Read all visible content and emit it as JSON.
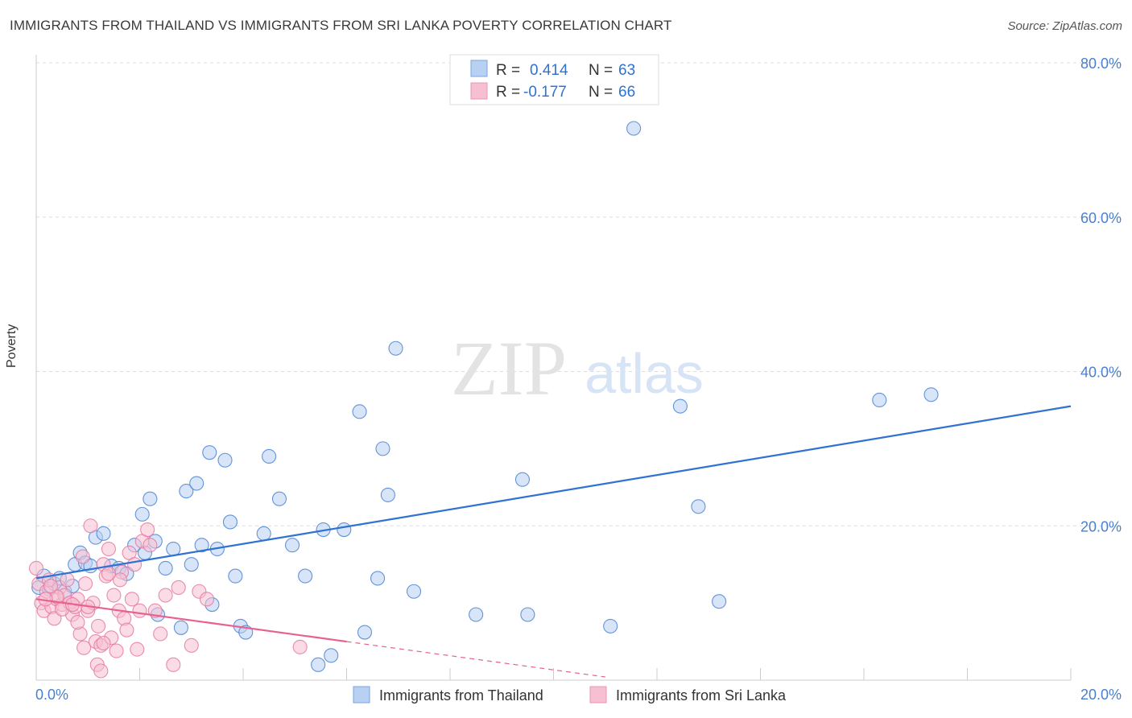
{
  "header": {
    "title": "IMMIGRANTS FROM THAILAND VS IMMIGRANTS FROM SRI LANKA POVERTY CORRELATION CHART",
    "source": "Source: ZipAtlas.com"
  },
  "watermark": {
    "zip": "ZIP",
    "atlas": "atlas"
  },
  "colors": {
    "blue": "#4a82d4",
    "blue_fill": "#b8d0f2",
    "blue_line": "#2f72d0",
    "pink": "#e47aa0",
    "pink_fill": "#f7c0d2",
    "pink_line": "#e8608e",
    "grid": "#dcdcdc",
    "axis_text": "#4a7fcf"
  },
  "stats_legend": [
    {
      "series": "Immigrants from Thailand",
      "r_label": "R =",
      "r_value": "0.414",
      "n_label": "N =",
      "n_value": "63",
      "color": "blue"
    },
    {
      "series": "Immigrants from Sri Lanka",
      "r_label": "R =",
      "r_value": "-0.177",
      "n_label": "N =",
      "n_value": "66",
      "color": "pink"
    }
  ],
  "chart_data": {
    "type": "scatter",
    "title": "IMMIGRANTS FROM THAILAND VS IMMIGRANTS FROM SRI LANKA POVERTY CORRELATION CHART",
    "xlabel": "",
    "ylabel": "Poverty",
    "xlim": [
      0,
      20
    ],
    "ylim": [
      0,
      80
    ],
    "x_tick_labels": [
      "0.0%",
      "20.0%"
    ],
    "y_ticks": [
      20,
      40,
      60,
      80
    ],
    "y_tick_labels": [
      "20.0%",
      "40.0%",
      "60.0%",
      "80.0%"
    ],
    "grid": true,
    "legend": "bottom-center",
    "series": [
      {
        "name": "Immigrants from Thailand",
        "color": "blue",
        "trend": {
          "x": [
            0,
            20
          ],
          "y": [
            13.2,
            35.5
          ],
          "dashed_x": null
        },
        "points": [
          [
            0.05,
            12.0
          ],
          [
            0.15,
            13.5
          ],
          [
            0.25,
            11.8
          ],
          [
            0.35,
            12.5
          ],
          [
            0.45,
            13.2
          ],
          [
            0.55,
            11.5
          ],
          [
            0.7,
            12.2
          ],
          [
            0.75,
            15.0
          ],
          [
            0.85,
            16.5
          ],
          [
            0.95,
            15.2
          ],
          [
            1.05,
            14.8
          ],
          [
            1.15,
            18.5
          ],
          [
            1.3,
            19.0
          ],
          [
            1.45,
            14.8
          ],
          [
            1.6,
            14.5
          ],
          [
            1.75,
            13.8
          ],
          [
            1.9,
            17.5
          ],
          [
            2.05,
            21.5
          ],
          [
            2.1,
            16.5
          ],
          [
            2.2,
            23.5
          ],
          [
            2.3,
            18.0
          ],
          [
            2.35,
            8.5
          ],
          [
            2.5,
            14.5
          ],
          [
            2.65,
            17.0
          ],
          [
            2.8,
            6.8
          ],
          [
            2.9,
            24.5
          ],
          [
            3.0,
            15.0
          ],
          [
            3.1,
            25.5
          ],
          [
            3.2,
            17.5
          ],
          [
            3.35,
            29.5
          ],
          [
            3.4,
            9.8
          ],
          [
            3.5,
            17.0
          ],
          [
            3.65,
            28.5
          ],
          [
            3.75,
            20.5
          ],
          [
            3.85,
            13.5
          ],
          [
            3.95,
            7.0
          ],
          [
            4.05,
            6.2
          ],
          [
            4.4,
            19.0
          ],
          [
            4.5,
            29.0
          ],
          [
            4.7,
            23.5
          ],
          [
            4.95,
            17.5
          ],
          [
            5.2,
            13.5
          ],
          [
            5.45,
            2.0
          ],
          [
            5.55,
            19.5
          ],
          [
            5.7,
            3.2
          ],
          [
            5.95,
            19.5
          ],
          [
            6.25,
            34.8
          ],
          [
            6.35,
            6.2
          ],
          [
            6.6,
            13.2
          ],
          [
            6.7,
            30.0
          ],
          [
            6.8,
            24.0
          ],
          [
            6.95,
            43.0
          ],
          [
            7.3,
            11.5
          ],
          [
            8.5,
            8.5
          ],
          [
            9.4,
            26.0
          ],
          [
            9.5,
            8.5
          ],
          [
            11.1,
            7.0
          ],
          [
            11.55,
            71.5
          ],
          [
            12.45,
            35.5
          ],
          [
            12.8,
            22.5
          ],
          [
            13.2,
            10.2
          ],
          [
            16.3,
            36.3
          ],
          [
            17.3,
            37.0
          ]
        ]
      },
      {
        "name": "Immigrants from Sri Lanka",
        "color": "pink",
        "trend": {
          "x": [
            0,
            6.0
          ],
          "y": [
            10.5,
            5.0
          ],
          "dashed_x": [
            6.0,
            11.0
          ]
        },
        "points": [
          [
            0.0,
            14.5
          ],
          [
            0.05,
            12.5
          ],
          [
            0.1,
            10.0
          ],
          [
            0.15,
            9.0
          ],
          [
            0.2,
            11.5
          ],
          [
            0.25,
            13.0
          ],
          [
            0.3,
            9.5
          ],
          [
            0.35,
            8.0
          ],
          [
            0.4,
            10.5
          ],
          [
            0.45,
            12.0
          ],
          [
            0.5,
            9.8
          ],
          [
            0.55,
            11.0
          ],
          [
            0.6,
            13.0
          ],
          [
            0.65,
            10.0
          ],
          [
            0.7,
            8.5
          ],
          [
            0.75,
            9.5
          ],
          [
            0.8,
            10.5
          ],
          [
            0.85,
            6.0
          ],
          [
            0.9,
            16.0
          ],
          [
            0.95,
            12.5
          ],
          [
            1.0,
            9.0
          ],
          [
            1.05,
            20.0
          ],
          [
            1.1,
            10.0
          ],
          [
            1.15,
            5.0
          ],
          [
            1.2,
            7.0
          ],
          [
            1.25,
            4.5
          ],
          [
            1.3,
            15.0
          ],
          [
            1.35,
            13.5
          ],
          [
            1.4,
            17.0
          ],
          [
            1.45,
            5.5
          ],
          [
            1.5,
            11.0
          ],
          [
            1.55,
            3.8
          ],
          [
            1.6,
            9.0
          ],
          [
            1.65,
            14.0
          ],
          [
            1.7,
            8.0
          ],
          [
            1.75,
            6.5
          ],
          [
            1.8,
            16.5
          ],
          [
            1.85,
            10.5
          ],
          [
            1.9,
            15.0
          ],
          [
            1.95,
            4.0
          ],
          [
            2.0,
            9.0
          ],
          [
            2.05,
            18.0
          ],
          [
            2.15,
            19.5
          ],
          [
            2.2,
            17.5
          ],
          [
            2.3,
            9.0
          ],
          [
            2.4,
            6.0
          ],
          [
            2.5,
            11.0
          ],
          [
            2.65,
            2.0
          ],
          [
            2.75,
            12.0
          ],
          [
            3.0,
            4.5
          ],
          [
            3.15,
            11.5
          ],
          [
            3.3,
            10.5
          ],
          [
            5.1,
            4.3
          ],
          [
            1.18,
            2.0
          ],
          [
            1.25,
            1.2
          ],
          [
            0.92,
            4.2
          ],
          [
            0.8,
            7.5
          ],
          [
            0.5,
            9.2
          ],
          [
            0.4,
            10.8
          ],
          [
            0.7,
            9.8
          ],
          [
            1.62,
            13.0
          ],
          [
            1.4,
            13.8
          ],
          [
            0.18,
            10.5
          ],
          [
            1.3,
            4.8
          ],
          [
            1.0,
            9.5
          ],
          [
            0.28,
            12.2
          ]
        ]
      }
    ]
  }
}
